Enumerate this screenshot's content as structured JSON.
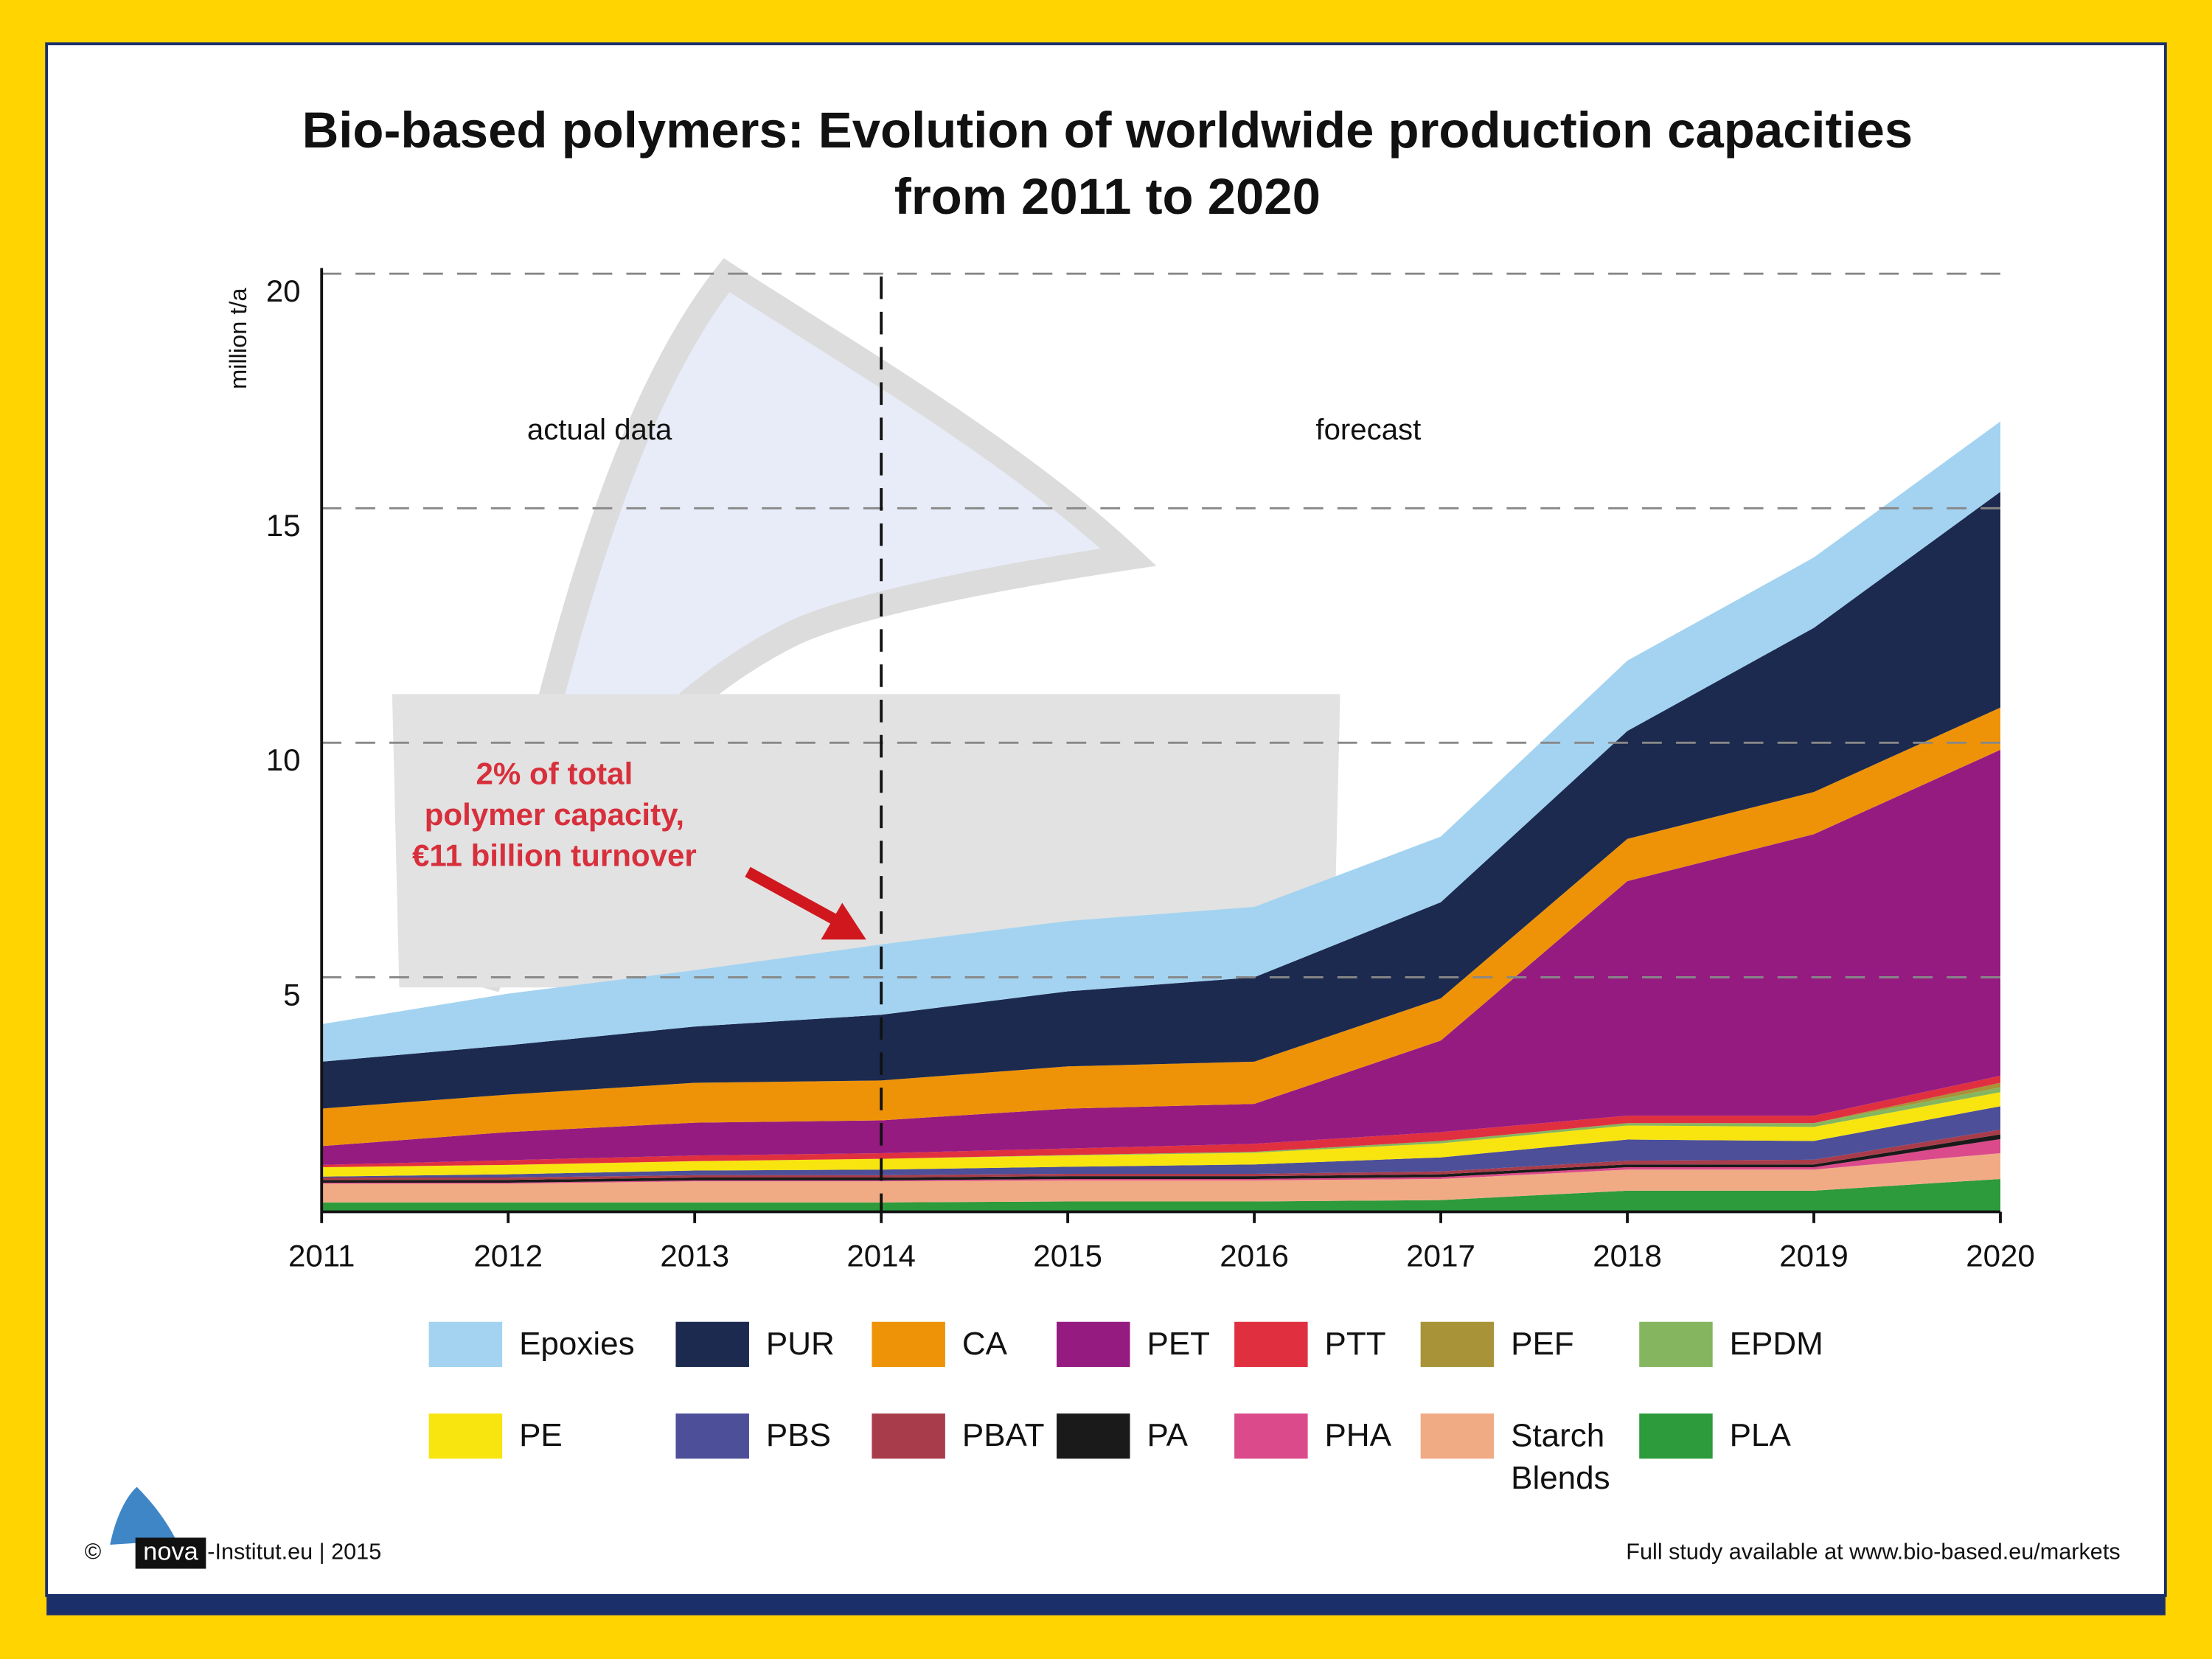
{
  "chart_data": {
    "type": "stacked_area",
    "title": [
      "Bio-based polymers: Evolution of worldwide production capacities",
      "from 2011 to 2020"
    ],
    "y_label": "million t/a",
    "x": [
      2011,
      2012,
      2013,
      2014,
      2015,
      2016,
      2017,
      2018,
      2019,
      2020
    ],
    "xlim": [
      2011,
      2020
    ],
    "xticks": [
      2011,
      2012,
      2013,
      2014,
      2015,
      2016,
      2017,
      2018,
      2019,
      2020
    ],
    "ylim": [
      0,
      20
    ],
    "yticks": [
      5,
      10,
      15,
      20
    ],
    "grid": true,
    "divider": 2014,
    "period_labels": [
      "actual data",
      "forecast"
    ],
    "annotation": [
      "2% of total",
      "polymer capacity,",
      "€11 billion turnover"
    ],
    "watermark": "nova",
    "series": [
      {
        "name": "Epoxies",
        "color": "#a3d3f0",
        "values": [
          0.8,
          1.1,
          1.2,
          1.5,
          1.5,
          1.5,
          1.4,
          1.5,
          1.5,
          1.5
        ]
      },
      {
        "name": "PUR",
        "color": "#1c2a4f",
        "values": [
          1.0,
          1.05,
          1.2,
          1.4,
          1.6,
          1.8,
          2.05,
          2.3,
          3.5,
          4.6
        ]
      },
      {
        "name": "CA",
        "color": "#ee9308",
        "values": [
          0.8,
          0.8,
          0.85,
          0.85,
          0.9,
          0.9,
          0.9,
          0.9,
          0.9,
          0.9
        ]
      },
      {
        "name": "PET",
        "color": "#951b81",
        "values": [
          0.4,
          0.6,
          0.7,
          0.7,
          0.85,
          0.85,
          1.95,
          5.0,
          6.0,
          6.95
        ]
      },
      {
        "name": "PTT",
        "color": "#e03040",
        "values": [
          0.05,
          0.1,
          0.12,
          0.12,
          0.14,
          0.17,
          0.19,
          0.16,
          0.16,
          0.15
        ]
      },
      {
        "name": "PEF",
        "color": "#a99338",
        "values": [
          0,
          0,
          0,
          0,
          0,
          0,
          0,
          0,
          0,
          0.1
        ]
      },
      {
        "name": "EPDM",
        "color": "#85b65f",
        "values": [
          0,
          0,
          0,
          0,
          0.01,
          0.02,
          0.05,
          0.05,
          0.08,
          0.1
        ]
      },
      {
        "name": "PE",
        "color": "#f8e510",
        "values": [
          0.2,
          0.2,
          0.2,
          0.23,
          0.24,
          0.25,
          0.3,
          0.3,
          0.3,
          0.3
        ]
      },
      {
        "name": "PBS",
        "color": "#4d4f98",
        "values": [
          0.02,
          0.07,
          0.1,
          0.12,
          0.15,
          0.2,
          0.3,
          0.45,
          0.4,
          0.5
        ]
      },
      {
        "name": "PBAT",
        "color": "#a93c4a",
        "values": [
          0.05,
          0.05,
          0.05,
          0.05,
          0.05,
          0.05,
          0.06,
          0.08,
          0.1,
          0.1
        ]
      },
      {
        "name": "PA",
        "color": "#1a1a1a",
        "values": [
          0.06,
          0.06,
          0.06,
          0.06,
          0.06,
          0.06,
          0.06,
          0.06,
          0.06,
          0.1
        ]
      },
      {
        "name": "PHA",
        "color": "#db4a8b",
        "values": [
          0.02,
          0.02,
          0.02,
          0.02,
          0.03,
          0.03,
          0.04,
          0.05,
          0.05,
          0.3
        ]
      },
      {
        "name": "Starch Blends",
        "color": "#f0ab85",
        "values": [
          0.4,
          0.4,
          0.45,
          0.45,
          0.45,
          0.45,
          0.45,
          0.45,
          0.45,
          0.55
        ]
      },
      {
        "name": "PLA",
        "color": "#2d9a3c",
        "values": [
          0.2,
          0.2,
          0.2,
          0.2,
          0.22,
          0.22,
          0.25,
          0.45,
          0.45,
          0.7
        ]
      }
    ]
  },
  "footer": {
    "copyright": "©",
    "logo_text": "nova",
    "left": "-Institut.eu | 2015",
    "right": "Full study available at www.bio-based.eu/markets"
  }
}
